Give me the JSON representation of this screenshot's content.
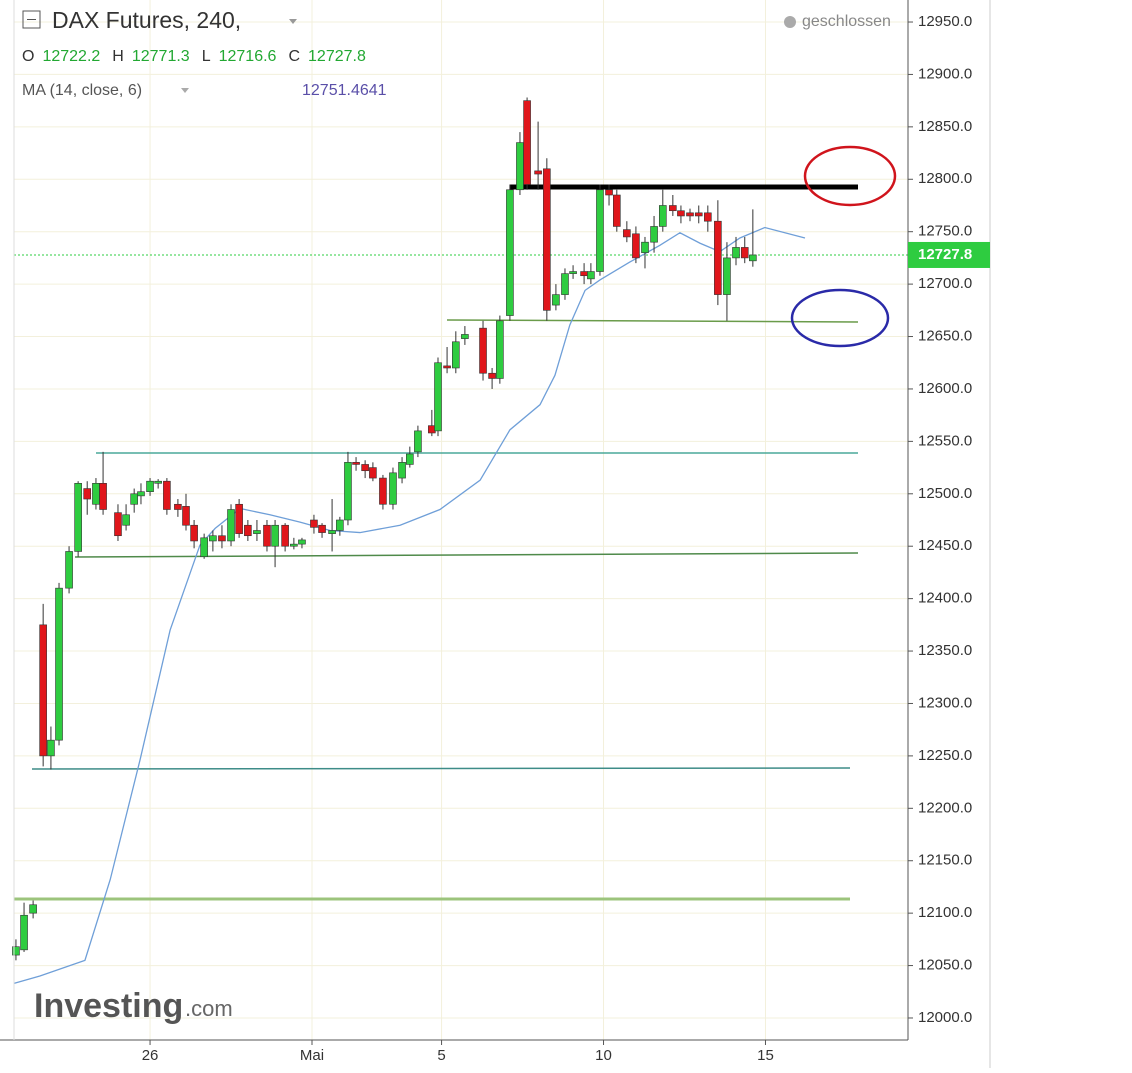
{
  "chart_data": {
    "type": "candlestick",
    "title": "DAX Futures, 240,",
    "status": "geschlossen",
    "ohlc_header": [
      {
        "label": "O",
        "value": 12722.2
      },
      {
        "label": "H",
        "value": 12771.3
      },
      {
        "label": "L",
        "value": 12716.6
      },
      {
        "label": "C",
        "value": 12727.8
      }
    ],
    "indicator": {
      "name": "MA (14, close, 6)",
      "value": 12751.4641,
      "color": "#6f9fd8",
      "value_color": "#5a4fa8",
      "x": [
        21.8,
        22.6,
        23.99,
        24.77,
        25.69,
        26.62,
        27.54,
        28.01,
        28.78,
        29.7,
        30.63,
        31.56,
        32.48,
        33.72,
        34.95,
        36.19,
        37.11,
        38.04,
        38.5,
        38.96,
        39.43,
        39.89,
        40.81,
        41.74,
        42.36,
        42.98,
        43.59,
        44.21,
        44.98,
        46.22
      ],
      "values": [
        12033,
        12040,
        12055,
        12132,
        12246,
        12370,
        12451,
        12467,
        12486,
        12480,
        12473,
        12465,
        12463,
        12470,
        12485,
        12513,
        12561,
        12585,
        12613,
        12661,
        12694,
        12704,
        12721,
        12737,
        12749,
        12739,
        12731,
        12744,
        12754,
        12744
      ]
    },
    "last_price": 12727.8,
    "up_color": "#2ecc40",
    "down_color": "#e0161b",
    "x": [
      21.86,
      22.11,
      22.39,
      22.7,
      22.94,
      23.19,
      23.5,
      23.78,
      24.06,
      24.33,
      24.55,
      25.01,
      25.26,
      25.51,
      25.72,
      26.0,
      26.25,
      26.52,
      26.86,
      27.11,
      27.36,
      27.67,
      27.94,
      28.22,
      28.5,
      28.75,
      29.02,
      29.3,
      29.61,
      29.86,
      30.17,
      30.44,
      30.69,
      31.06,
      31.31,
      31.62,
      31.86,
      32.11,
      32.36,
      32.64,
      32.88,
      33.19,
      33.5,
      33.78,
      34.02,
      34.27,
      34.7,
      34.89,
      35.17,
      35.44,
      35.72,
      36.28,
      36.56,
      36.8,
      37.11,
      37.42,
      37.64,
      37.98,
      38.25,
      38.53,
      38.81,
      39.06,
      39.4,
      39.61,
      39.89,
      40.17,
      40.41,
      40.72,
      41.0,
      41.28,
      41.56,
      41.83,
      42.14,
      42.39,
      42.67,
      42.94,
      43.22,
      43.53,
      43.81,
      44.09,
      44.36,
      44.61
    ],
    "open": [
      12060,
      12065,
      12100,
      12375,
      12250,
      12265,
      12410,
      12445,
      12505,
      12490,
      12510,
      12482,
      12470,
      12490,
      12498,
      12502,
      12510,
      12512,
      12490,
      12488,
      12470,
      12440,
      12455,
      12460,
      12455,
      12490,
      12470,
      12462,
      12470,
      12450,
      12470,
      12450,
      12452,
      12475,
      12470,
      12462,
      12465,
      12475,
      12530,
      12528,
      12525,
      12515,
      12490,
      12515,
      12528,
      12540,
      12565,
      12560,
      12622,
      12620,
      12648,
      12658,
      12615,
      12610,
      12670,
      12790,
      12875,
      12808,
      12810,
      12680,
      12690,
      12710,
      12712,
      12705,
      12712,
      12790,
      12785,
      12752,
      12748,
      12730,
      12740,
      12755,
      12775,
      12770,
      12768,
      12768,
      12768,
      12760,
      12690,
      12725,
      12735,
      12722.2
    ],
    "high": [
      12075,
      12110,
      12112,
      12395,
      12278,
      12415,
      12450,
      12512,
      12512,
      12515,
      12540,
      12490,
      12490,
      12505,
      12510,
      12515,
      12514,
      12515,
      12495,
      12500,
      12475,
      12462,
      12465,
      12470,
      12490,
      12495,
      12475,
      12475,
      12475,
      12475,
      12472,
      12458,
      12458,
      12480,
      12472,
      12495,
      12478,
      12540,
      12535,
      12532,
      12530,
      12518,
      12525,
      12535,
      12545,
      12565,
      12580,
      12630,
      12640,
      12655,
      12660,
      12665,
      12620,
      12670,
      12795,
      12845,
      12878,
      12855,
      12820,
      12700,
      12715,
      12718,
      12720,
      12720,
      12795,
      12795,
      12790,
      12760,
      12755,
      12745,
      12765,
      12790,
      12785,
      12775,
      12772,
      12775,
      12775,
      12780,
      12740,
      12745,
      12745,
      12771.3
    ],
    "low": [
      12055,
      12063,
      12095,
      12240,
      12237,
      12260,
      12405,
      12440,
      12480,
      12485,
      12480,
      12455,
      12465,
      12482,
      12490,
      12498,
      12505,
      12480,
      12478,
      12465,
      12448,
      12438,
      12445,
      12448,
      12450,
      12458,
      12455,
      12455,
      12445,
      12430,
      12445,
      12447,
      12448,
      12462,
      12458,
      12445,
      12460,
      12470,
      12522,
      12515,
      12512,
      12485,
      12485,
      12510,
      12525,
      12535,
      12555,
      12555,
      12615,
      12615,
      12642,
      12608,
      12600,
      12605,
      12665,
      12785,
      12790,
      12790,
      12665,
      12675,
      12685,
      12705,
      12700,
      12700,
      12708,
      12775,
      12750,
      12740,
      12720,
      12715,
      12730,
      12750,
      12765,
      12758,
      12760,
      12758,
      12750,
      12680,
      12665,
      12718,
      12720,
      12716.6
    ],
    "close": [
      12068,
      12098,
      12108,
      12250,
      12265,
      12410,
      12445,
      12510,
      12495,
      12510,
      12485,
      12460,
      12480,
      12500,
      12502,
      12512,
      12512,
      12485,
      12485,
      12470,
      12455,
      12458,
      12460,
      12455,
      12485,
      12462,
      12460,
      12465,
      12450,
      12470,
      12450,
      12452,
      12456,
      12468,
      12463,
      12465,
      12475,
      12530,
      12528,
      12522,
      12515,
      12490,
      12520,
      12530,
      12538,
      12560,
      12558,
      12625,
      12620,
      12645,
      12652,
      12615,
      12610,
      12665,
      12790,
      12835,
      12795,
      12805,
      12675,
      12690,
      12710,
      12712,
      12708,
      12712,
      12790,
      12785,
      12755,
      12745,
      12725,
      12740,
      12755,
      12775,
      12770,
      12765,
      12765,
      12765,
      12760,
      12690,
      12725,
      12735,
      12725,
      12727.8
    ],
    "xlim": [
      21.8,
      49.4
    ],
    "ylim": [
      11979,
      12971
    ],
    "xticks": [
      {
        "value": 26,
        "label": "26"
      },
      {
        "value": 31,
        "label": "Mai"
      },
      {
        "value": 35,
        "label": "5"
      },
      {
        "value": 40,
        "label": "10"
      },
      {
        "value": 45,
        "label": "15"
      }
    ],
    "yticks": [
      {
        "value": 12000,
        "label": "12000.0"
      },
      {
        "value": 12050,
        "label": "12050.0"
      },
      {
        "value": 12100,
        "label": "12100.0"
      },
      {
        "value": 12150,
        "label": "12150.0"
      },
      {
        "value": 12200,
        "label": "12200.0"
      },
      {
        "value": 12250,
        "label": "12250.0"
      },
      {
        "value": 12300,
        "label": "12300.0"
      },
      {
        "value": 12350,
        "label": "12350.0"
      },
      {
        "value": 12400,
        "label": "12400.0"
      },
      {
        "value": 12450,
        "label": "12450.0"
      },
      {
        "value": 12500,
        "label": "12500.0"
      },
      {
        "value": 12550,
        "label": "12550.0"
      },
      {
        "value": 12600,
        "label": "12600.0"
      },
      {
        "value": 12650,
        "label": "12650.0"
      },
      {
        "value": 12700,
        "label": "12700.0"
      },
      {
        "value": 12750,
        "label": "12750.0"
      },
      {
        "value": 12800,
        "label": "12800.0"
      },
      {
        "value": 12850,
        "label": "12850.0"
      },
      {
        "value": 12900,
        "label": "12900.0"
      },
      {
        "value": 12950,
        "label": "12950.0"
      }
    ],
    "grid": true,
    "watermark": {
      "brand": "Investing",
      "suffix": ".com"
    }
  }
}
